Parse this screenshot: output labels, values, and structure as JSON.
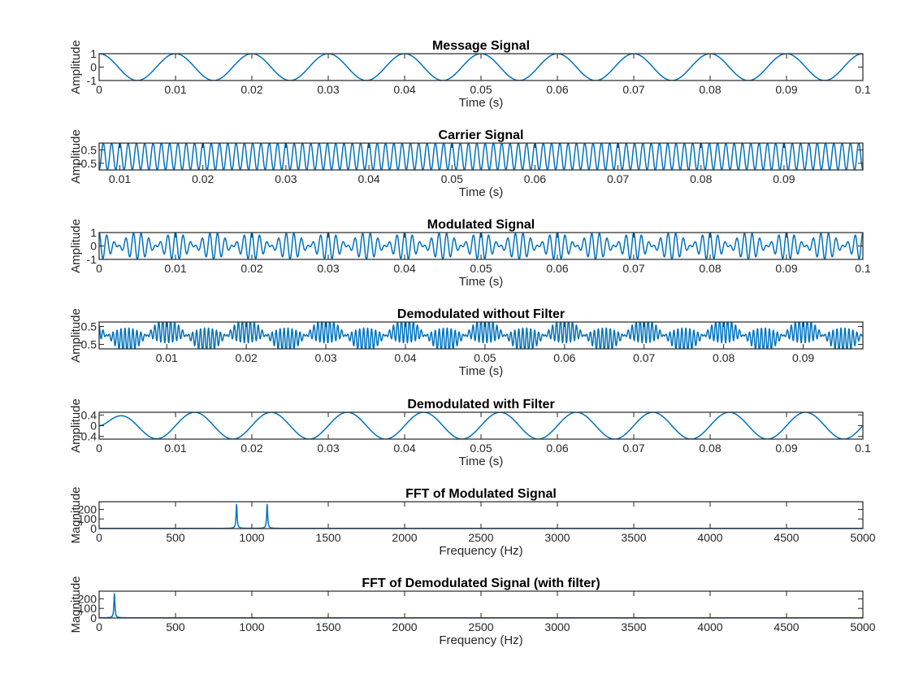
{
  "colors": {
    "line": "#0072BD",
    "axes": "#262626"
  },
  "chart_data": [
    {
      "type": "line",
      "title": "Message Signal",
      "xlabel": "Time (s)",
      "ylabel": "Amplitude",
      "xlim": [
        0,
        0.1
      ],
      "ylim": [
        -1,
        1
      ],
      "xticks": [
        0,
        0.01,
        0.02,
        0.03,
        0.04,
        0.05,
        0.06,
        0.07,
        0.08,
        0.09,
        0.1
      ],
      "xtick_labels": [
        "0",
        "0.01",
        "0.02",
        "0.03",
        "0.04",
        "0.05",
        "0.06",
        "0.07",
        "0.08",
        "0.09",
        "0.1"
      ],
      "yticks": [
        -1,
        0,
        1
      ],
      "ytick_labels": [
        "-1",
        "0",
        "1"
      ],
      "series": [
        {
          "function": "cos",
          "amplitude": 1,
          "frequency_hz": 100,
          "x_range": [
            0,
            0.1
          ]
        }
      ]
    },
    {
      "type": "line",
      "title": "Carrier Signal",
      "xlabel": "Time (s)",
      "ylabel": "Amplitude",
      "xlim": [
        0.0075,
        0.0995
      ],
      "ylim": [
        -1,
        1
      ],
      "xticks": [
        0.01,
        0.02,
        0.03,
        0.04,
        0.05,
        0.06,
        0.07,
        0.08,
        0.09
      ],
      "xtick_labels": [
        "0.01",
        "0.02",
        "0.03",
        "0.04",
        "0.05",
        "0.06",
        "0.07",
        "0.08",
        "0.09"
      ],
      "yticks": [
        -0.5,
        0.5
      ],
      "ytick_labels": [
        "-0.5",
        "0.5"
      ],
      "series": [
        {
          "function": "cos",
          "amplitude": 1,
          "frequency_hz": 1000,
          "x_range": [
            0.0075,
            0.0995
          ]
        }
      ]
    },
    {
      "type": "line",
      "title": "Modulated Signal",
      "xlabel": "Time (s)",
      "ylabel": "Amplitude",
      "xlim": [
        0,
        0.1
      ],
      "ylim": [
        -1,
        1
      ],
      "xticks": [
        0,
        0.01,
        0.02,
        0.03,
        0.04,
        0.05,
        0.06,
        0.07,
        0.08,
        0.09,
        0.1
      ],
      "xtick_labels": [
        "0",
        "0.01",
        "0.02",
        "0.03",
        "0.04",
        "0.05",
        "0.06",
        "0.07",
        "0.08",
        "0.09",
        "0.1"
      ],
      "yticks": [
        -1,
        0,
        1
      ],
      "ytick_labels": [
        "-1",
        "0",
        "1"
      ],
      "series": [
        {
          "function": "dsb_sc",
          "amplitude": 1,
          "message_hz": 100,
          "carrier_hz": 1000,
          "x_range": [
            0,
            0.1
          ]
        }
      ]
    },
    {
      "type": "line",
      "title": "Demodulated without Filter",
      "xlabel": "Time (s)",
      "ylabel": "Amplitude",
      "xlim": [
        0.0015,
        0.0975
      ],
      "ylim": [
        -0.75,
        0.75
      ],
      "xticks": [
        0.01,
        0.02,
        0.03,
        0.04,
        0.05,
        0.06,
        0.07,
        0.08,
        0.09
      ],
      "xtick_labels": [
        "0.01",
        "0.02",
        "0.03",
        "0.04",
        "0.05",
        "0.06",
        "0.07",
        "0.08",
        "0.09"
      ],
      "yticks": [
        -0.5,
        0.5
      ],
      "ytick_labels": [
        "-0.5",
        "0.5"
      ],
      "series": [
        {
          "function": "demod_raw",
          "amplitude": 0.7,
          "message_hz": 100,
          "carrier_hz": 1000,
          "x_range": [
            0.0015,
            0.0975
          ]
        }
      ]
    },
    {
      "type": "line",
      "title": "Demodulated with Filter",
      "xlabel": "Time (s)",
      "ylabel": "Amplitude",
      "xlim": [
        0,
        0.1
      ],
      "ylim": [
        -0.5,
        0.5
      ],
      "xticks": [
        0,
        0.01,
        0.02,
        0.03,
        0.04,
        0.05,
        0.06,
        0.07,
        0.08,
        0.09,
        0.1
      ],
      "xtick_labels": [
        "0",
        "0.01",
        "0.02",
        "0.03",
        "0.04",
        "0.05",
        "0.06",
        "0.07",
        "0.08",
        "0.09",
        "0.1"
      ],
      "yticks": [
        -0.4,
        0,
        0.4
      ],
      "ytick_labels": [
        "-0.4",
        "0",
        "0.4"
      ],
      "series": [
        {
          "function": "demod_filtered",
          "amplitude": 0.5,
          "message_hz": 100,
          "phase_delay_s": 0.0025,
          "transient_s": 0.006,
          "x_range": [
            0,
            0.1
          ]
        }
      ]
    },
    {
      "type": "line",
      "title": "FFT of Modulated Signal",
      "xlabel": "Frequency (Hz)",
      "ylabel": "Magnitude",
      "xlim": [
        0,
        5000
      ],
      "ylim": [
        0,
        280
      ],
      "xticks": [
        0,
        500,
        1000,
        1500,
        2000,
        2500,
        3000,
        3500,
        4000,
        4500,
        5000
      ],
      "xtick_labels": [
        "0",
        "500",
        "1000",
        "1500",
        "2000",
        "2500",
        "3000",
        "3500",
        "4000",
        "4500",
        "5000"
      ],
      "yticks": [
        0,
        100,
        200
      ],
      "ytick_labels": [
        "0",
        "100",
        "200"
      ],
      "series": [
        {
          "function": "spectrum",
          "peaks": [
            {
              "x": 900,
              "y": 250
            },
            {
              "x": 1100,
              "y": 250
            }
          ],
          "x_range": [
            0,
            5000
          ]
        }
      ]
    },
    {
      "type": "line",
      "title": "FFT of Demodulated Signal (with filter)",
      "xlabel": "Frequency (Hz)",
      "ylabel": "Magnitude",
      "xlim": [
        0,
        5000
      ],
      "ylim": [
        0,
        280
      ],
      "xticks": [
        0,
        500,
        1000,
        1500,
        2000,
        2500,
        3000,
        3500,
        4000,
        4500,
        5000
      ],
      "xtick_labels": [
        "0",
        "500",
        "1000",
        "1500",
        "2000",
        "2500",
        "3000",
        "3500",
        "4000",
        "4500",
        "5000"
      ],
      "yticks": [
        0,
        100,
        200
      ],
      "ytick_labels": [
        "0",
        "100",
        "200"
      ],
      "series": [
        {
          "function": "spectrum",
          "peaks": [
            {
              "x": 100,
              "y": 250
            }
          ],
          "x_range": [
            0,
            5000
          ]
        }
      ]
    }
  ]
}
